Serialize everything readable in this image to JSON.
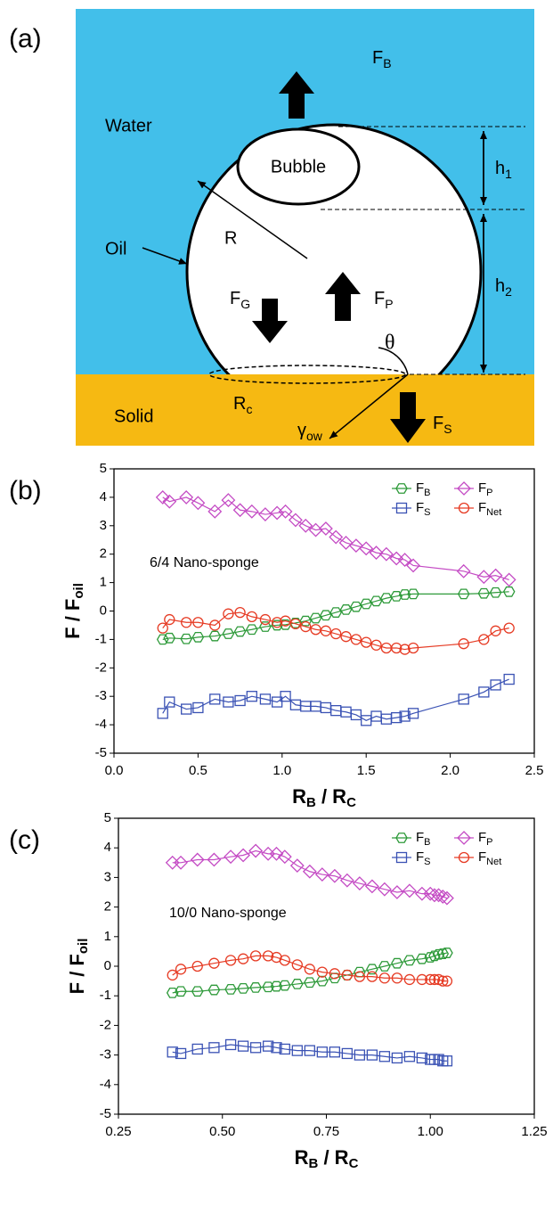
{
  "diagram": {
    "panel_label": "(a)",
    "water": "Water",
    "bubble": "Bubble",
    "oil": "Oil",
    "solid": "Solid",
    "radius": "R",
    "theta": "θ",
    "force_b": {
      "text": "F",
      "sub": "B"
    },
    "force_g": {
      "text": "F",
      "sub": "G"
    },
    "force_p": {
      "text": "F",
      "sub": "P"
    },
    "force_s": {
      "text": "F",
      "sub": "S"
    },
    "h1": {
      "text": "h",
      "sub": "1"
    },
    "h2": {
      "text": "h",
      "sub": "2"
    },
    "rc": {
      "text": "R",
      "sub": "c"
    },
    "gamma": {
      "text": "γ",
      "sub": "ow"
    }
  },
  "chart_data": [
    {
      "type": "line",
      "panel_label": "(b)",
      "annotation": "6/4 Nano-sponge",
      "xlabel": [
        {
          "text": "R"
        },
        {
          "sub": "B"
        },
        {
          "text": " / R"
        },
        {
          "sub": "C"
        }
      ],
      "ylabel": [
        {
          "text": "F / F"
        },
        {
          "sub": "oil"
        }
      ],
      "xlim": [
        0,
        2.5
      ],
      "xticks": [
        {
          "value": 0,
          "label": "0.0"
        },
        0.5,
        {
          "value": 1,
          "label": "1.0"
        },
        1.5,
        {
          "value": 2,
          "label": "2.0"
        },
        2.5
      ],
      "ylim": [
        -5,
        5
      ],
      "yticks": [
        -5,
        -4,
        -3,
        -2,
        -1,
        0,
        1,
        2,
        3,
        4,
        5
      ],
      "x": [
        0.29,
        0.33,
        0.43,
        0.5,
        0.6,
        0.68,
        0.75,
        0.82,
        0.9,
        0.97,
        1.02,
        1.08,
        1.14,
        1.2,
        1.26,
        1.32,
        1.38,
        1.44,
        1.5,
        1.56,
        1.62,
        1.68,
        1.73,
        1.78,
        2.08,
        2.2,
        2.27,
        2.35
      ],
      "series": [
        {
          "name": "F",
          "subscript": "B",
          "color": "#2e9a3a",
          "marker": "hexagon",
          "values": [
            -1.0,
            -0.95,
            -0.98,
            -0.92,
            -0.88,
            -0.8,
            -0.72,
            -0.65,
            -0.55,
            -0.5,
            -0.48,
            -0.42,
            -0.35,
            -0.25,
            -0.15,
            -0.05,
            0.05,
            0.15,
            0.25,
            0.35,
            0.45,
            0.52,
            0.58,
            0.6,
            0.6,
            0.62,
            0.65,
            0.68
          ]
        },
        {
          "name": "F",
          "subscript": "P",
          "color": "#c44bc4",
          "marker": "diamond",
          "values": [
            4.0,
            3.85,
            4.0,
            3.8,
            3.5,
            3.9,
            3.55,
            3.5,
            3.4,
            3.45,
            3.5,
            3.2,
            3.0,
            2.85,
            2.9,
            2.6,
            2.4,
            2.3,
            2.2,
            2.05,
            2.0,
            1.85,
            1.8,
            1.6,
            1.4,
            1.2,
            1.25,
            1.1
          ]
        },
        {
          "name": "F",
          "subscript": "S",
          "color": "#3a52b4",
          "marker": "square",
          "values": [
            -3.6,
            -3.2,
            -3.45,
            -3.4,
            -3.1,
            -3.2,
            -3.15,
            -3.0,
            -3.1,
            -3.2,
            -3.0,
            -3.3,
            -3.35,
            -3.35,
            -3.4,
            -3.5,
            -3.55,
            -3.65,
            -3.85,
            -3.7,
            -3.8,
            -3.75,
            -3.7,
            -3.6,
            -3.1,
            -2.85,
            -2.6,
            -2.4
          ]
        },
        {
          "name": "F",
          "subscript": "Net",
          "color": "#e63b24",
          "marker": "circle",
          "values": [
            -0.6,
            -0.3,
            -0.4,
            -0.4,
            -0.5,
            -0.1,
            -0.05,
            -0.2,
            -0.3,
            -0.4,
            -0.35,
            -0.45,
            -0.55,
            -0.65,
            -0.7,
            -0.8,
            -0.9,
            -1.0,
            -1.1,
            -1.2,
            -1.3,
            -1.3,
            -1.35,
            -1.3,
            -1.15,
            -1.0,
            -0.7,
            -0.6
          ]
        }
      ]
    },
    {
      "type": "line",
      "panel_label": "(c)",
      "annotation": "10/0 Nano-sponge",
      "xlabel": [
        {
          "text": "R"
        },
        {
          "sub": "B"
        },
        {
          "text": " / R"
        },
        {
          "sub": "C"
        }
      ],
      "ylabel": [
        {
          "text": "F / F"
        },
        {
          "sub": "oil"
        }
      ],
      "xlim": [
        0.25,
        1.25
      ],
      "xticks": [
        0.25,
        {
          "value": 0.5,
          "label": "0.50"
        },
        0.75,
        {
          "value": 1,
          "label": "1.00"
        },
        1.25
      ],
      "ylim": [
        -5,
        5
      ],
      "yticks": [
        -5,
        -4,
        -3,
        -2,
        -1,
        0,
        1,
        2,
        3,
        4,
        5
      ],
      "x": [
        0.38,
        0.4,
        0.44,
        0.48,
        0.52,
        0.55,
        0.58,
        0.61,
        0.63,
        0.65,
        0.68,
        0.71,
        0.74,
        0.77,
        0.8,
        0.83,
        0.86,
        0.89,
        0.92,
        0.95,
        0.98,
        1.0,
        1.01,
        1.02,
        1.03,
        1.04
      ],
      "series": [
        {
          "name": "F",
          "subscript": "B",
          "color": "#2e9a3a",
          "marker": "hexagon",
          "values": [
            -0.9,
            -0.85,
            -0.85,
            -0.8,
            -0.78,
            -0.75,
            -0.72,
            -0.7,
            -0.68,
            -0.65,
            -0.6,
            -0.55,
            -0.5,
            -0.4,
            -0.3,
            -0.2,
            -0.1,
            0.0,
            0.1,
            0.2,
            0.25,
            0.3,
            0.35,
            0.4,
            0.42,
            0.45
          ]
        },
        {
          "name": "F",
          "subscript": "P",
          "color": "#c44bc4",
          "marker": "diamond",
          "values": [
            3.5,
            3.5,
            3.6,
            3.6,
            3.7,
            3.75,
            3.9,
            3.8,
            3.8,
            3.7,
            3.4,
            3.2,
            3.1,
            3.05,
            2.9,
            2.8,
            2.7,
            2.6,
            2.5,
            2.55,
            2.45,
            2.45,
            2.4,
            2.4,
            2.35,
            2.3
          ]
        },
        {
          "name": "F",
          "subscript": "S",
          "color": "#3a52b4",
          "marker": "square",
          "values": [
            -2.9,
            -2.95,
            -2.8,
            -2.75,
            -2.65,
            -2.7,
            -2.75,
            -2.7,
            -2.75,
            -2.8,
            -2.85,
            -2.85,
            -2.9,
            -2.9,
            -2.95,
            -3.0,
            -3.0,
            -3.05,
            -3.1,
            -3.05,
            -3.1,
            -3.15,
            -3.15,
            -3.15,
            -3.2,
            -3.2
          ]
        },
        {
          "name": "F",
          "subscript": "Net",
          "color": "#e63b24",
          "marker": "circle",
          "values": [
            -0.3,
            -0.1,
            0.0,
            0.1,
            0.2,
            0.25,
            0.35,
            0.35,
            0.3,
            0.2,
            0.05,
            -0.1,
            -0.2,
            -0.25,
            -0.3,
            -0.35,
            -0.35,
            -0.4,
            -0.4,
            -0.45,
            -0.45,
            -0.45,
            -0.45,
            -0.45,
            -0.5,
            -0.5
          ]
        }
      ]
    }
  ]
}
